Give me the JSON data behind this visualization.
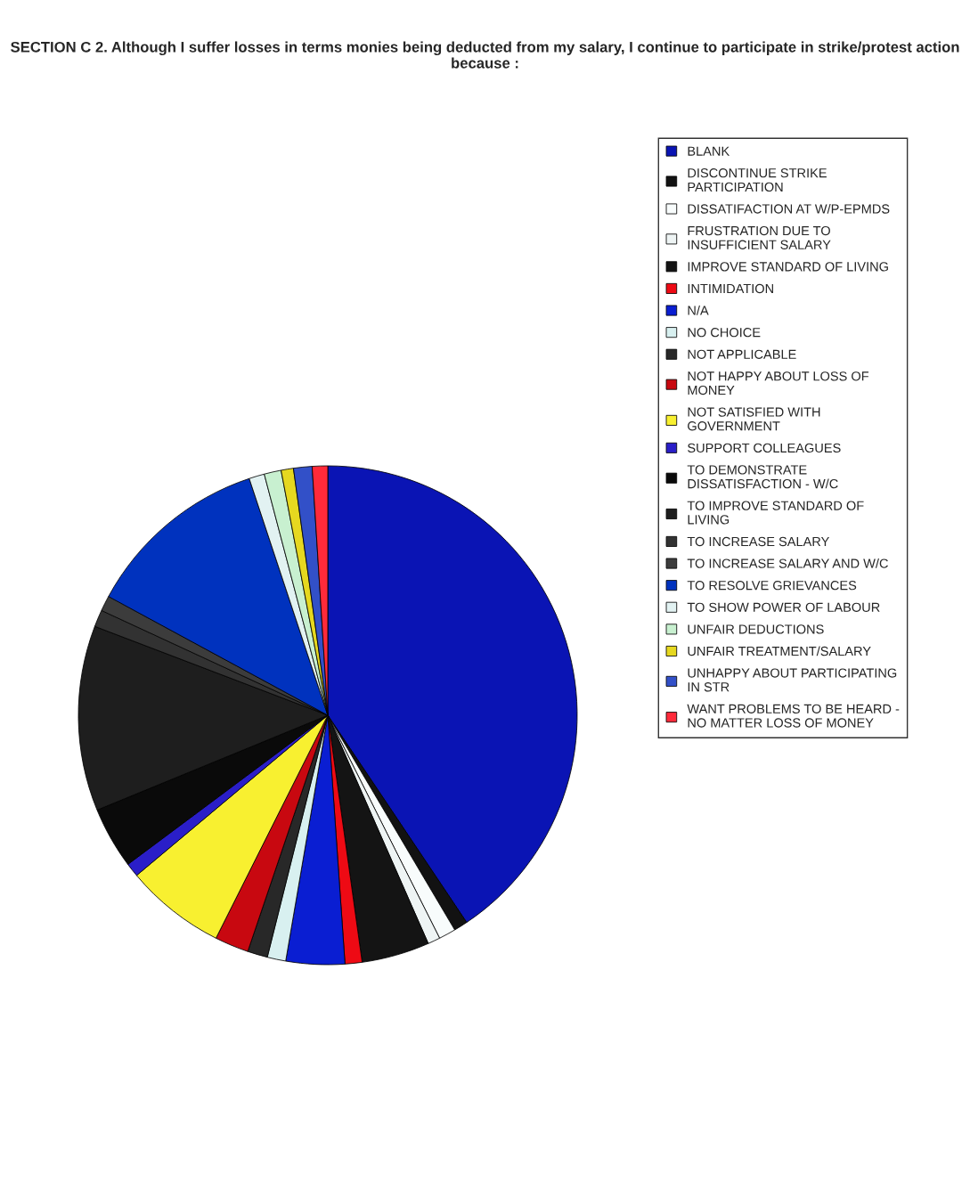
{
  "chart_data": {
    "type": "pie",
    "title": "SECTION C 2. Although I suffer losses in terms monies being deducted from my salary, I continue to participate in strike/protest action because :",
    "categories": [
      "BLANK",
      "DISCONTINUE STRIKE PARTICIPATION",
      "DISSATIFACTION AT W/P-EPMDS",
      "FRUSTRATION DUE TO INSUFFICIENT SALARY",
      "IMPROVE STANDARD OF LIVING",
      "INTIMIDATION",
      "N/A",
      "NO CHOICE",
      "NOT APPLICABLE",
      "NOT HAPPY ABOUT LOSS OF MONEY",
      "NOT SATISFIED WITH GOVERNMENT",
      "SUPPORT COLLEAGUES",
      "TO DEMONSTRATE DISSATISFACTION - W/C",
      "TO IMPROVE STANDARD OF LIVING",
      "TO INCREASE SALARY",
      "TO INCREASE SALARY AND W/C",
      "TO RESOLVE GRIEVANCES",
      "TO SHOW POWER OF LABOUR",
      "UNFAIR DEDUCTIONS",
      "UNFAIR TREATMENT/SALARY",
      "UNHAPPY ABOUT PARTICIPATING IN STR",
      "WANT PROBLEMS TO BE HEARD - NO MATTER LOSS OF MONEY"
    ],
    "values": [
      40.6,
      0.9,
      1.1,
      0.8,
      4.4,
      1.1,
      3.8,
      1.2,
      1.3,
      2.2,
      6.5,
      0.9,
      4.0,
      12.0,
      1.1,
      1.0,
      12.0,
      1.0,
      1.1,
      0.8,
      1.2,
      1.0
    ],
    "colors": [
      "#0a14b4",
      "#121212",
      "#f8fcfc",
      "#eef4f4",
      "#141414",
      "#ee0a14",
      "#0a1ed2",
      "#d8f0f0",
      "#282828",
      "#c80810",
      "#f8f030",
      "#2a1ec8",
      "#0a0a0a",
      "#1e1e1e",
      "#323232",
      "#3c3c3c",
      "#0032be",
      "#e2f2f2",
      "#c8f0d0",
      "#e6d820",
      "#3250c8",
      "#ff2a3a"
    ],
    "legend": "right"
  }
}
